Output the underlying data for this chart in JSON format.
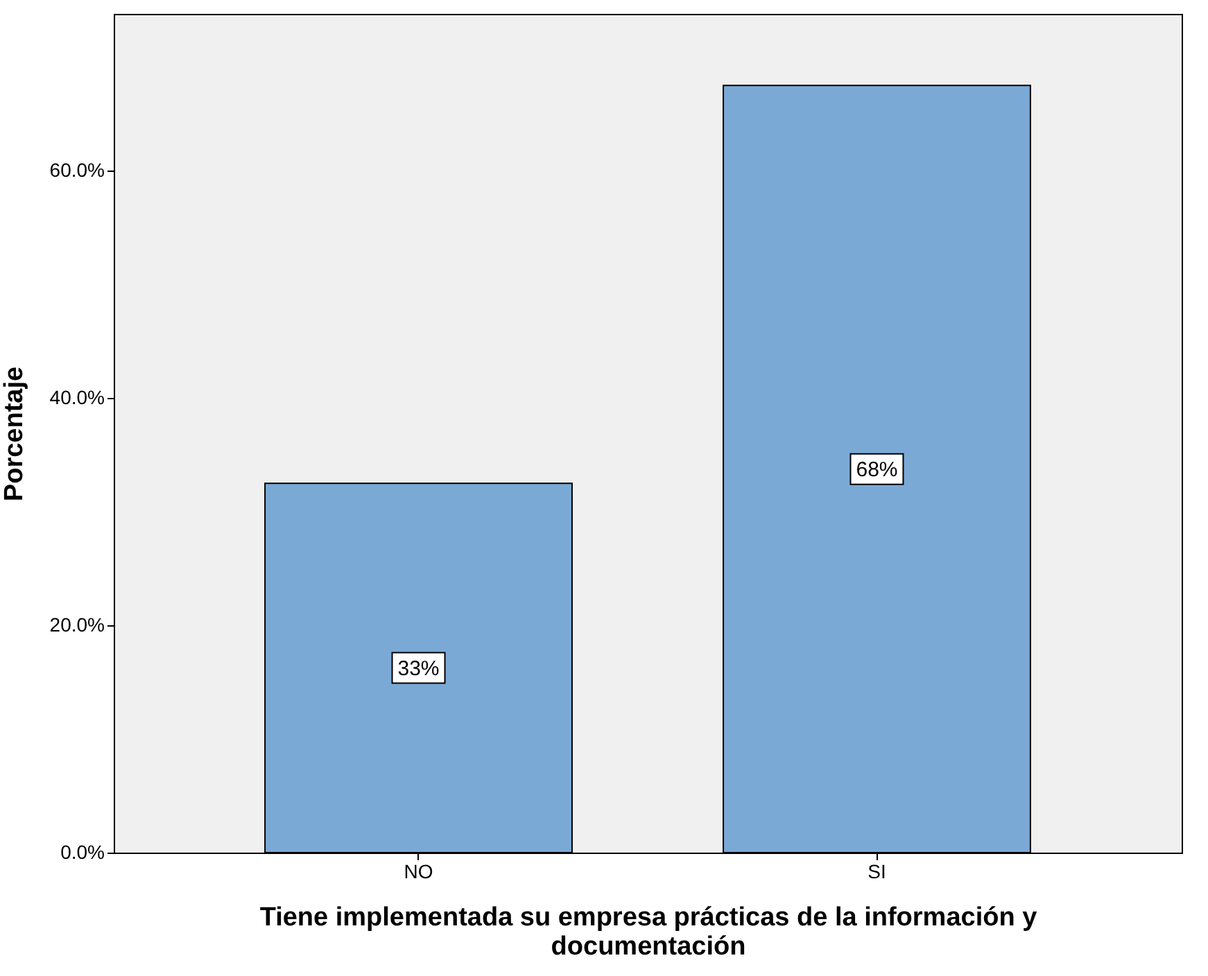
{
  "chart_data": {
    "type": "bar",
    "categories": [
      "NO",
      "SI"
    ],
    "values": [
      32.5,
      67.5
    ],
    "color": "#7ba9d6",
    "value_labels": [
      "33%",
      "68%"
    ],
    "xlabel": "Tiene implementada su empresa prácticas de la información y documentación",
    "ylabel": "Porcentaje",
    "ylim": [
      0,
      73.8
    ],
    "yticks": [
      {
        "value": 0,
        "label": "0.0%"
      },
      {
        "value": 20,
        "label": "20.0%"
      },
      {
        "value": 40,
        "label": "40.0%"
      },
      {
        "value": 60,
        "label": "60.0%"
      }
    ],
    "grid": false
  }
}
